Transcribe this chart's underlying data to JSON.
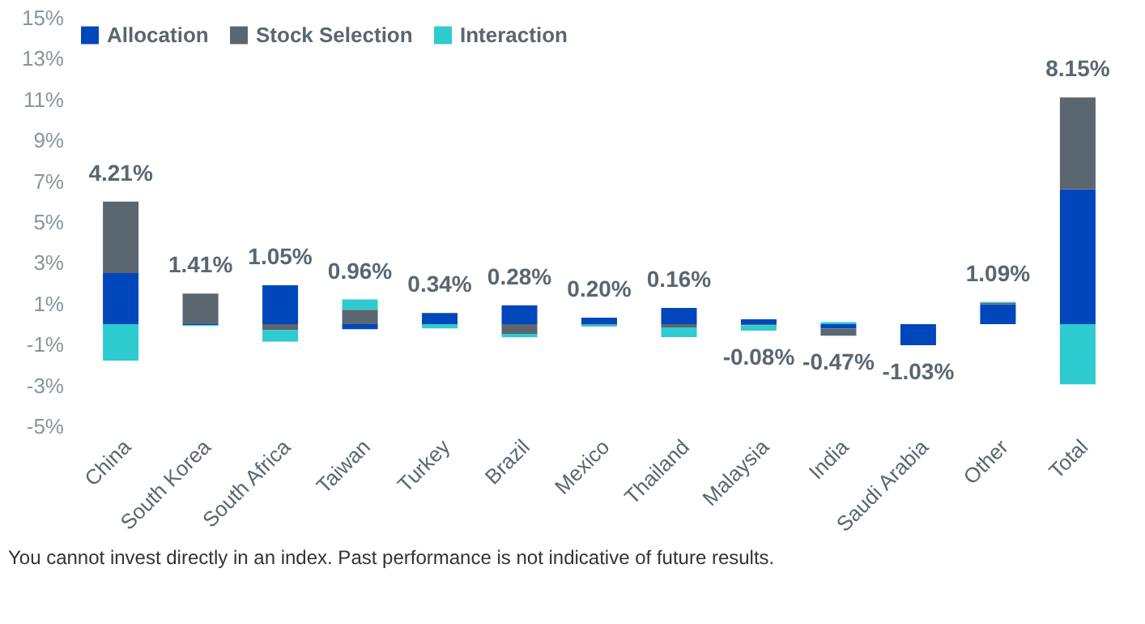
{
  "chart_data": {
    "type": "bar",
    "stacked": true,
    "categories": [
      "China",
      "South Korea",
      "South Africa",
      "Taiwan",
      "Turkey",
      "Brazil",
      "Mexico",
      "Thailand",
      "Malaysia",
      "India",
      "Saudi Arabia",
      "Other",
      "Total"
    ],
    "series": [
      {
        "name": "Allocation",
        "color": "#0047bb",
        "values": [
          2.5,
          -0.05,
          1.9,
          -0.25,
          0.55,
          0.92,
          0.32,
          0.79,
          0.24,
          -0.22,
          -1.03,
          0.97,
          6.6
        ]
      },
      {
        "name": "Stock Selection",
        "color": "#5a6670",
        "values": [
          3.5,
          1.5,
          -0.3,
          0.7,
          0,
          -0.48,
          -0.03,
          -0.16,
          -0.05,
          -0.35,
          0,
          0.08,
          4.5
        ]
      },
      {
        "name": "Interaction",
        "color": "#2ecbd1",
        "values": [
          -1.79,
          -0.04,
          -0.55,
          0.51,
          -0.21,
          -0.16,
          -0.09,
          -0.47,
          -0.27,
          0.1,
          0,
          0.04,
          -2.95
        ]
      }
    ],
    "totals": [
      "4.21%",
      "1.41%",
      "1.05%",
      "0.96%",
      "0.34%",
      "0.28%",
      "0.20%",
      "0.16%",
      "-0.08%",
      "-0.47%",
      "-1.03%",
      "1.09%",
      "8.15%"
    ],
    "ylim": [
      -5,
      15
    ],
    "yticks": [
      {
        "value": -5,
        "label": "-5%"
      },
      {
        "value": -3,
        "label": "-3%"
      },
      {
        "value": -1,
        "label": "-1%"
      },
      {
        "value": 1,
        "label": "1%"
      },
      {
        "value": 3,
        "label": "3%"
      },
      {
        "value": 5,
        "label": "5%"
      },
      {
        "value": 7,
        "label": "7%"
      },
      {
        "value": 9,
        "label": "9%"
      },
      {
        "value": 11,
        "label": "11%"
      },
      {
        "value": 13,
        "label": "13%"
      },
      {
        "value": 15,
        "label": "15%"
      }
    ],
    "grid": false,
    "legend": "top left",
    "annotations": [
      "You cannot invest directly in an index. Past performance is not indicative of future results."
    ]
  }
}
